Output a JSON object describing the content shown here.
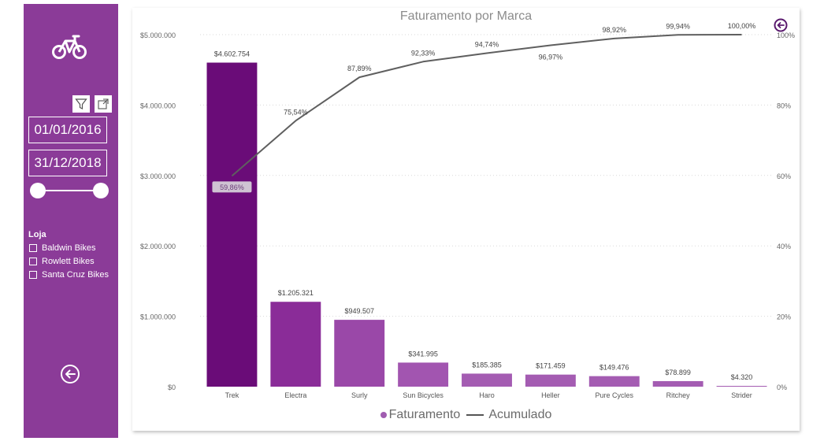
{
  "sidebar": {
    "date_start": "01/01/2016",
    "date_end": "31/12/2018",
    "loja_title": "Loja",
    "stores": [
      "Baldwin Bikes",
      "Rowlett Bikes",
      "Santa Cruz Bikes"
    ],
    "icons": [
      "bike-icon",
      "filter-icon",
      "focus-mode-icon",
      "back-arrow-icon"
    ]
  },
  "colors": {
    "sidebar_bg": "#8b3b98",
    "bar_colors": [
      "#6a0c78",
      "#8a2c98",
      "#9a48a8",
      "#a255b0",
      "#a45cb2",
      "#a45cb2",
      "#a45cb2",
      "#a45cb2",
      "#a45cb2"
    ],
    "line": "#5f5f5f"
  },
  "chart_data": {
    "type": "bar",
    "title": "Faturamento por Marca",
    "categories": [
      "Trek",
      "Electra",
      "Surly",
      "Sun Bicycles",
      "Haro",
      "Heller",
      "Pure Cycles",
      "Ritchey",
      "Strider"
    ],
    "series": [
      {
        "name": "Faturamento",
        "type": "bar",
        "axis": "left",
        "values": [
          4602754,
          1205321,
          949507,
          341995,
          185385,
          171459,
          149476,
          78899,
          4320
        ],
        "labels": [
          "$4.602.754",
          "$1.205.321",
          "$949.507",
          "$341.995",
          "$185.385",
          "$171.459",
          "$149.476",
          "$78.899",
          "$4.320"
        ]
      },
      {
        "name": "Acumulado",
        "type": "line",
        "axis": "right",
        "values": [
          59.86,
          75.54,
          87.89,
          92.33,
          94.74,
          96.97,
          98.92,
          99.94,
          100.0
        ],
        "labels": [
          "59,86%",
          "75,54%",
          "87,89%",
          "92,33%",
          "94,74%",
          "96,97%",
          "98,92%",
          "99,94%",
          "100,00%"
        ]
      }
    ],
    "y_left": {
      "range": [
        0,
        5000000
      ],
      "ticks": [
        0,
        1000000,
        2000000,
        3000000,
        4000000,
        5000000
      ],
      "tick_labels": [
        "$0",
        "$1.000.000",
        "$2.000.000",
        "$3.000.000",
        "$4.000.000",
        "$5.000.000"
      ]
    },
    "y_right": {
      "range": [
        0,
        100
      ],
      "ticks": [
        0,
        20,
        40,
        60,
        80,
        100
      ],
      "tick_labels": [
        "0%",
        "20%",
        "40%",
        "60%",
        "80%",
        "100%"
      ]
    },
    "grid": true,
    "legend_position": "bottom-center"
  }
}
